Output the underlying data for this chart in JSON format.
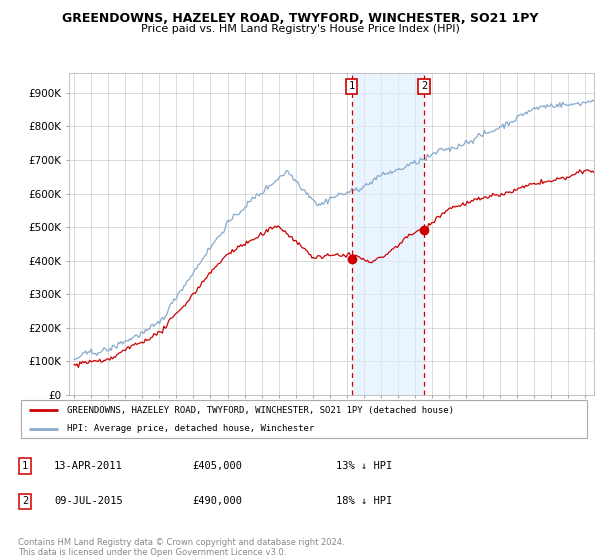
{
  "title": "GREENDOWNS, HAZELEY ROAD, TWYFORD, WINCHESTER, SO21 1PY",
  "subtitle": "Price paid vs. HM Land Registry's House Price Index (HPI)",
  "ylabel_ticks": [
    "£0",
    "£100K",
    "£200K",
    "£300K",
    "£400K",
    "£500K",
    "£600K",
    "£700K",
    "£800K",
    "£900K"
  ],
  "ytick_values": [
    0,
    100000,
    200000,
    300000,
    400000,
    500000,
    600000,
    700000,
    800000,
    900000
  ],
  "ylim": [
    0,
    960000
  ],
  "xlim_start": 1994.7,
  "xlim_end": 2025.5,
  "red_line_color": "#cc0000",
  "blue_line_color": "#88aacc",
  "vline_color": "#cc0000",
  "shade_color": "#ddeeff",
  "marker1_x": 2011.28,
  "marker1_y": 405000,
  "marker2_x": 2015.52,
  "marker2_y": 490000,
  "legend_label_red": "GREENDOWNS, HAZELEY ROAD, TWYFORD, WINCHESTER, SO21 1PY (detached house)",
  "legend_label_blue": "HPI: Average price, detached house, Winchester",
  "table_row1": [
    "1",
    "13-APR-2011",
    "£405,000",
    "13% ↓ HPI"
  ],
  "table_row2": [
    "2",
    "09-JUL-2015",
    "£490,000",
    "18% ↓ HPI"
  ],
  "footnote": "Contains HM Land Registry data © Crown copyright and database right 2024.\nThis data is licensed under the Open Government Licence v3.0.",
  "bg_color": "#ffffff",
  "grid_color": "#cccccc"
}
